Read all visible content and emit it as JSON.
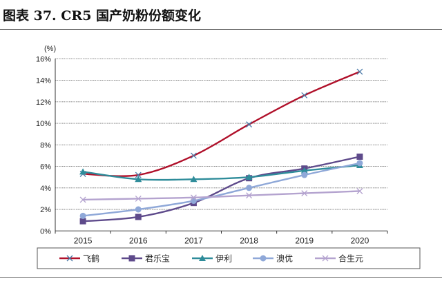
{
  "title": "图表 37. CR5 国产奶粉份额变化",
  "chart_data": {
    "type": "line",
    "title": "图表 37. CR5 国产奶粉份额变化",
    "ylabel": "(%)",
    "xlabel": "",
    "categories": [
      "2015",
      "2016",
      "2017",
      "2018",
      "2019",
      "2020"
    ],
    "ylim": [
      0,
      16
    ],
    "yticks": [
      "0%",
      "2%",
      "4%",
      "6%",
      "8%",
      "10%",
      "12%",
      "14%",
      "16%"
    ],
    "grid": true,
    "legend": "bottom",
    "series": [
      {
        "name": "飞鹤",
        "color": "#B0102A",
        "marker": "x",
        "values": [
          5.3,
          5.2,
          7.0,
          9.9,
          12.6,
          14.8
        ]
      },
      {
        "name": "君乐宝",
        "color": "#5E4A8B",
        "marker": "square",
        "values": [
          0.9,
          1.3,
          2.6,
          4.9,
          5.8,
          6.9
        ]
      },
      {
        "name": "伊利",
        "color": "#2E8C9A",
        "marker": "triangle",
        "values": [
          5.5,
          4.8,
          4.8,
          5.0,
          5.6,
          6.1
        ]
      },
      {
        "name": "澳优",
        "color": "#8FA8D8",
        "marker": "circle",
        "values": [
          1.4,
          2.0,
          2.8,
          4.0,
          5.2,
          6.3
        ]
      },
      {
        "name": "合生元",
        "color": "#B4A3CF",
        "marker": "x",
        "values": [
          2.9,
          3.0,
          3.1,
          3.3,
          3.5,
          3.7
        ]
      }
    ]
  }
}
